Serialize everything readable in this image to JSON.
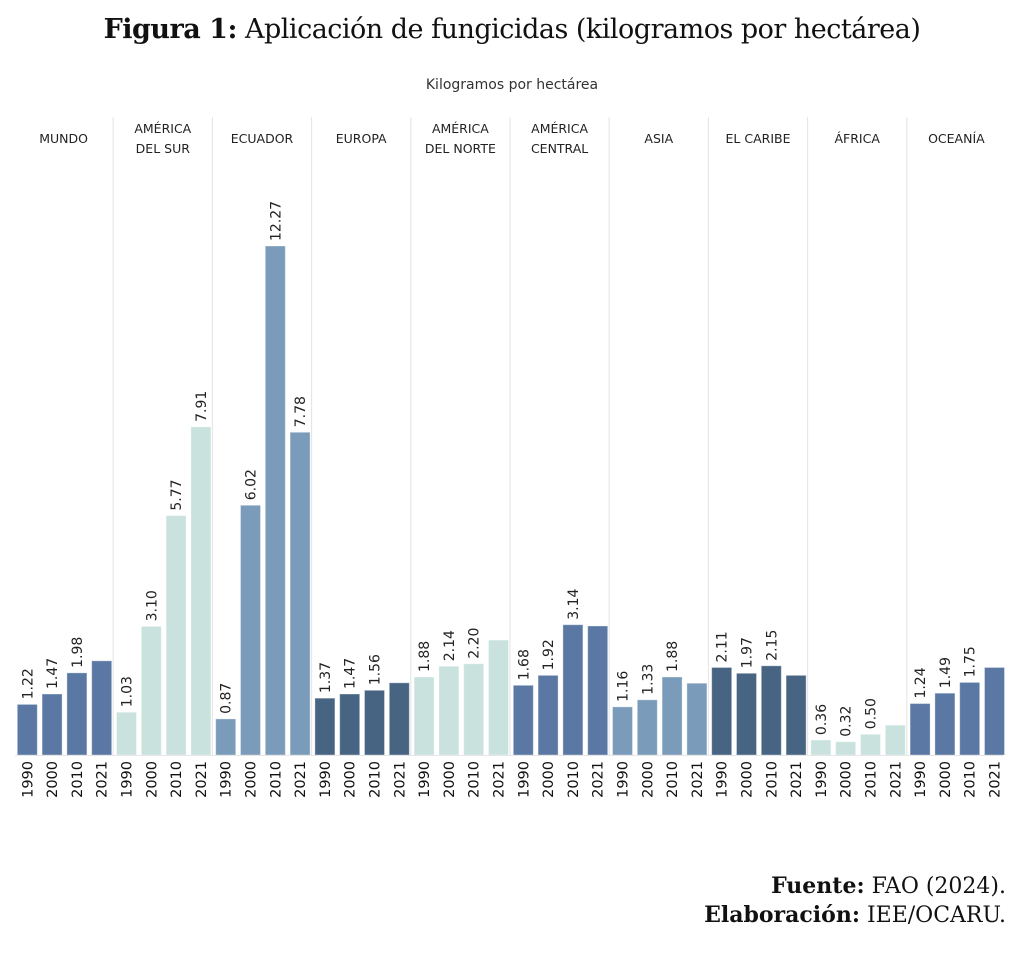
{
  "figure": {
    "title_prefix": "Figura 1:",
    "title_text": "Aplicación de fungicidas (kilogramos por hectárea)"
  },
  "footer": {
    "source_label": "Fuente:",
    "source_text": "FAO (2024).",
    "credit_label": "Elaboración:",
    "credit_text": "IEE/OCARU."
  },
  "chart_data": {
    "type": "bar",
    "title": "Kilogramos por hectárea",
    "xlabel": "",
    "ylabel": "Kilogramos por hectárea",
    "ylim": [
      0,
      12.27
    ],
    "grid": false,
    "years": [
      "1990",
      "2000",
      "2010",
      "2021"
    ],
    "groups": [
      {
        "name": "MUNDO",
        "lines": [
          "MUNDO"
        ],
        "color": "#5a78a3",
        "values": [
          1.22,
          1.47,
          1.98,
          2.27
        ],
        "labels": [
          "1.22",
          "1.47",
          "1.98",
          ""
        ]
      },
      {
        "name": "AMÉRICA DEL SUR",
        "lines": [
          "AMÉRICA",
          "DEL SUR"
        ],
        "color": "#c9e2de",
        "values": [
          1.03,
          3.1,
          5.77,
          7.91
        ],
        "labels": [
          "1.03",
          "3.10",
          "5.77",
          "7.91"
        ]
      },
      {
        "name": "ECUADOR",
        "lines": [
          "ECUADOR"
        ],
        "color": "#7a9bb9",
        "values": [
          0.87,
          6.02,
          12.27,
          7.78
        ],
        "labels": [
          "0.87",
          "6.02",
          "12.27",
          "7.78"
        ]
      },
      {
        "name": "EUROPA",
        "lines": [
          "EUROPA"
        ],
        "color": "#476482",
        "values": [
          1.37,
          1.47,
          1.56,
          1.74
        ],
        "labels": [
          "1.37",
          "1.47",
          "1.56",
          ""
        ]
      },
      {
        "name": "AMÉRICA DEL NORTE",
        "lines": [
          "AMÉRICA",
          "DEL NORTE"
        ],
        "color": "#c9e2de",
        "values": [
          1.88,
          2.14,
          2.2,
          2.77
        ],
        "labels": [
          "1.88",
          "2.14",
          "2.20",
          ""
        ]
      },
      {
        "name": "AMÉRICA CENTRAL",
        "lines": [
          "AMÉRICA",
          "CENTRAL"
        ],
        "color": "#5a78a3",
        "values": [
          1.68,
          1.92,
          3.14,
          3.11
        ],
        "labels": [
          "1.68",
          "1.92",
          "3.14",
          ""
        ]
      },
      {
        "name": "ASIA",
        "lines": [
          "ASIA"
        ],
        "color": "#7a9bb9",
        "values": [
          1.16,
          1.33,
          1.88,
          1.73
        ],
        "labels": [
          "1.16",
          "1.33",
          "1.88",
          ""
        ]
      },
      {
        "name": "EL CARIBE",
        "lines": [
          "EL CARIBE"
        ],
        "color": "#476482",
        "values": [
          2.11,
          1.97,
          2.15,
          1.92
        ],
        "labels": [
          "2.11",
          "1.97",
          "2.15",
          ""
        ]
      },
      {
        "name": "ÁFRICA",
        "lines": [
          "ÁFRICA"
        ],
        "color": "#c9e2de",
        "values": [
          0.36,
          0.32,
          0.5,
          0.72
        ],
        "labels": [
          "0.36",
          "0.32",
          "0.50",
          ""
        ]
      },
      {
        "name": "OCEANÍA",
        "lines": [
          "OCEANÍA"
        ],
        "color": "#5a78a3",
        "values": [
          1.24,
          1.49,
          1.75,
          2.11
        ],
        "labels": [
          "1.24",
          "1.49",
          "1.75",
          ""
        ]
      }
    ]
  }
}
